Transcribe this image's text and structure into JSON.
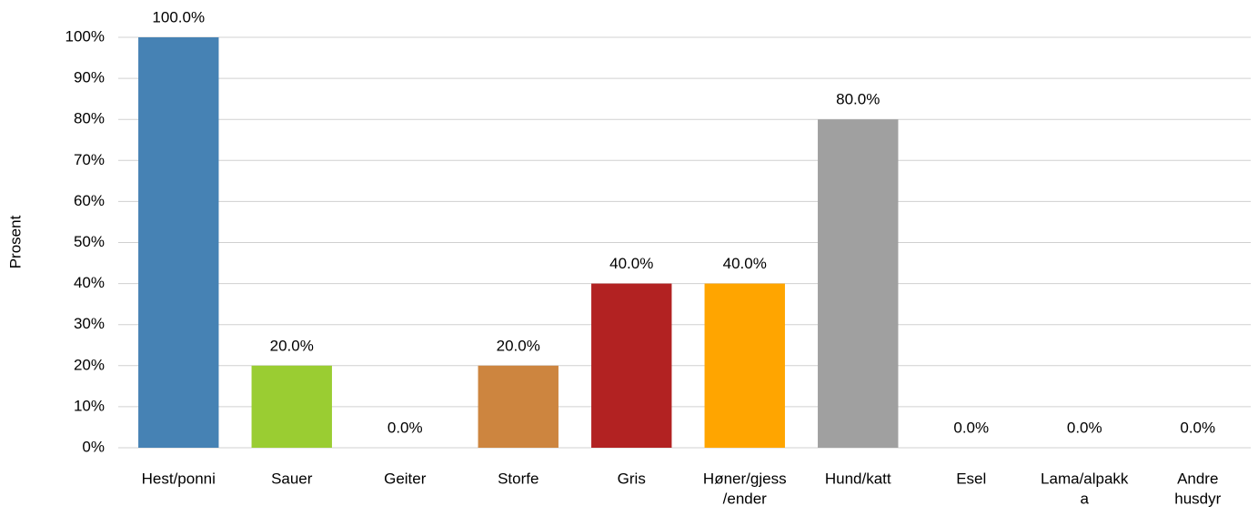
{
  "chart_data": {
    "type": "bar",
    "y_label": "Prosent",
    "categories": [
      [
        "Hest/ponni"
      ],
      [
        "Sauer"
      ],
      [
        "Geiter"
      ],
      [
        "Storfe"
      ],
      [
        "Gris"
      ],
      [
        "Høner/gjess",
        "/ender"
      ],
      [
        "Hund/katt"
      ],
      [
        "Esel"
      ],
      [
        "Lama/alpakk",
        "a"
      ],
      [
        "Andre",
        "husdyr"
      ]
    ],
    "values": [
      100,
      20,
      0,
      20,
      40,
      40,
      80,
      0,
      0,
      0
    ],
    "value_labels": [
      "100.0%",
      "20.0%",
      "0.0%",
      "20.0%",
      "40.0%",
      "40.0%",
      "80.0%",
      "0.0%",
      "0.0%",
      "0.0%"
    ],
    "colors": [
      "#4682b4",
      "#9acd32",
      "#6a5acd",
      "#cd853f",
      "#b22222",
      "#ffa500",
      "#a0a0a0",
      "#8b4513",
      "#2e8b57",
      "#708090"
    ],
    "ylim": [
      0,
      100
    ],
    "yticks": [
      {
        "value": 0,
        "label": "0%"
      },
      {
        "value": 10,
        "label": "10%"
      },
      {
        "value": 20,
        "label": "20%"
      },
      {
        "value": 30,
        "label": "30%"
      },
      {
        "value": 40,
        "label": "40%"
      },
      {
        "value": 50,
        "label": "50%"
      },
      {
        "value": 60,
        "label": "60%"
      },
      {
        "value": 70,
        "label": "70%"
      },
      {
        "value": 80,
        "label": "80%"
      },
      {
        "value": 90,
        "label": "90%"
      },
      {
        "value": 100,
        "label": "100%"
      }
    ],
    "grid": true
  }
}
